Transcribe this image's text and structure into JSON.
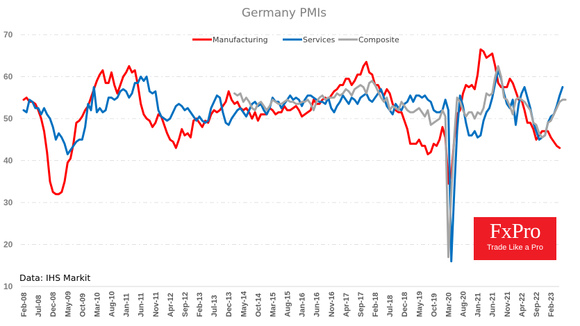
{
  "chart_data": {
    "type": "line",
    "title": "Germany PMIs",
    "xlabel": "",
    "ylabel": "",
    "ylim": [
      10,
      70
    ],
    "yticks": [
      10,
      20,
      30,
      40,
      50,
      60,
      70
    ],
    "grid": true,
    "legend_position": "top-center",
    "source_note": "Data: IHS Markit",
    "start_month": "Feb-08",
    "x_tick_labels": [
      "Feb-08",
      "Jul-08",
      "Dec-08",
      "May-09",
      "Oct-09",
      "Mar-10",
      "Aug-10",
      "Jan-11",
      "Jun-11",
      "Nov-11",
      "Apr-12",
      "Sep-12",
      "Feb-13",
      "Jul-13",
      "Dec-13",
      "May-14",
      "Oct-14",
      "Mar-15",
      "Aug-15",
      "Jan-16",
      "Jun-16",
      "Nov-16",
      "Apr-17",
      "Sep-17",
      "Feb-18",
      "Jul-18",
      "Dec-18",
      "May-19",
      "Oct-19",
      "Mar-20",
      "Aug-20",
      "Jan-21",
      "Jun-21",
      "Nov-21",
      "Apr-22",
      "Sep-22",
      "Feb-23"
    ],
    "series": [
      {
        "name": "Manufacturing",
        "color": "#ff0000",
        "start_index": 0,
        "values": [
          54.5,
          55,
          54,
          54,
          53.5,
          52,
          50,
          47,
          42,
          35,
          32.5,
          32,
          32,
          32.5,
          35,
          39.5,
          40.5,
          44,
          49,
          49.5,
          50.5,
          52,
          53,
          55,
          57,
          59,
          60.5,
          61.5,
          58.5,
          58.5,
          61,
          58,
          56,
          58,
          60,
          61,
          62.5,
          61,
          61.5,
          58,
          53.5,
          51,
          50,
          49.5,
          48,
          49,
          51,
          50.5,
          48.5,
          46.5,
          45,
          44.5,
          43,
          45,
          47.5,
          46,
          46.5,
          45.5,
          49.5,
          50,
          49,
          48,
          49.5,
          49,
          51,
          52,
          51.5,
          52,
          53,
          54,
          56.5,
          54.5,
          53.5,
          54,
          52.5,
          52,
          52.5,
          51.5,
          50,
          51.5,
          49.5,
          51,
          51,
          51,
          52.5,
          52,
          51,
          51.5,
          51.5,
          53,
          52,
          52,
          52.5,
          53,
          52,
          50.5,
          51,
          51.5,
          52,
          54.5,
          53.5,
          53.5,
          54.5,
          55,
          54.5,
          55.5,
          56.5,
          57,
          58,
          58,
          59.5,
          59.5,
          58,
          59,
          60.5,
          60.5,
          62.5,
          63.5,
          61,
          60.5,
          58,
          58,
          56.5,
          55.5,
          57,
          56,
          53.5,
          52,
          51.5,
          51.5,
          49.5,
          47.5,
          44,
          44,
          44,
          45,
          43.5,
          43.5,
          41.5,
          42,
          44,
          43.5,
          45,
          48,
          45.5,
          34.5,
          36.5,
          45,
          51,
          52,
          56,
          58,
          57.5,
          58,
          57,
          60.5,
          66.5,
          66,
          64.5,
          65,
          65.5,
          62.5,
          58.5,
          57.5,
          57.5,
          57.5,
          59.5,
          58.5,
          56.5,
          54.5,
          54.5,
          52,
          49,
          49,
          47.5,
          45,
          46,
          47,
          47,
          47,
          45.5,
          44.5,
          43.5,
          43
        ]
      },
      {
        "name": "Services",
        "color": "#0070c0",
        "start_index": 0,
        "values": [
          52,
          51.5,
          54.5,
          54,
          52.5,
          52.5,
          51,
          52.5,
          51,
          50,
          48,
          45,
          46.5,
          45.5,
          44,
          41.5,
          42.5,
          43.5,
          44.5,
          45,
          45,
          48,
          53.5,
          52,
          57.5,
          51.5,
          52.5,
          51.5,
          52,
          55,
          55,
          54.5,
          55,
          56.5,
          57,
          56.5,
          55,
          56,
          58.5,
          58.5,
          60,
          59,
          60,
          56.5,
          56,
          56.5,
          52,
          50.5,
          50,
          49.5,
          50,
          51.5,
          53,
          53.5,
          53,
          52,
          52.5,
          51.5,
          50.5,
          49.5,
          50.5,
          49.5,
          49,
          49.5,
          52.5,
          54,
          55.5,
          55,
          51.5,
          49,
          48.5,
          50,
          51,
          52,
          52.5,
          51.5,
          50.5,
          52,
          53.5,
          54,
          53,
          53.5,
          52,
          51,
          52.5,
          55,
          54,
          54,
          52.5,
          53.5,
          54.5,
          55.5,
          54.5,
          55,
          54.5,
          53,
          54.5,
          55.5,
          55.5,
          55,
          54.5,
          54,
          54,
          53.5,
          55,
          52.5,
          51.5,
          53,
          54,
          55.5,
          54.5,
          53.5,
          55,
          54.5,
          53.5,
          55,
          55.5,
          56,
          54.5,
          54,
          55,
          56,
          57,
          55,
          53,
          52,
          51,
          53.5,
          52.5,
          52,
          53.5,
          54,
          55.5,
          54,
          55.5,
          55.5,
          55,
          55.5,
          54.5,
          54,
          52,
          51.5,
          51.5,
          52,
          54.5,
          52,
          16,
          32.5,
          47,
          55.5,
          53,
          49,
          46,
          46,
          47,
          45.5,
          46,
          49.5,
          51.5,
          52.5,
          55,
          58.5,
          61.5,
          59.5,
          56,
          53.5,
          52.5,
          54.5,
          48.5,
          53.5,
          56,
          57.5,
          55,
          52.5,
          49,
          47,
          45,
          45.5,
          46,
          49,
          50.5,
          51,
          53,
          55.5,
          57.5
        ]
      },
      {
        "name": "Composite",
        "color": "#a5a5a5",
        "start_index": 72,
        "values": [
          56,
          55.5,
          56,
          54,
          55,
          54,
          52.5,
          52,
          53.5,
          54,
          53,
          52,
          53,
          54.5,
          54,
          53.5,
          53.5,
          54,
          54.5,
          54,
          54,
          53.5,
          53.5,
          54,
          54,
          54.5,
          53.5,
          52,
          54,
          55,
          55.5,
          54.5,
          55,
          55,
          55,
          56,
          55.5,
          56,
          57,
          56.5,
          55.5,
          57,
          57.5,
          58,
          57.5,
          56,
          58.5,
          59,
          58,
          56.5,
          55,
          54,
          55,
          52,
          53,
          52.5,
          52,
          54,
          53,
          52,
          51.5,
          51.5,
          52,
          52.5,
          51.5,
          50.5,
          52,
          48.5,
          49,
          49.5,
          50,
          52,
          50.5,
          17,
          32.5,
          45.5,
          55,
          54,
          52,
          50.5,
          51.5,
          51.5,
          50,
          51.5,
          51,
          52.5,
          56,
          55.5,
          56,
          60,
          62.5,
          60,
          55,
          54.5,
          53,
          51,
          54.5,
          55,
          54.5,
          54,
          53,
          52,
          49,
          48.5,
          46.5,
          45.5,
          46,
          49,
          49.5,
          51,
          52.5,
          54,
          54.5,
          54.5
        ]
      }
    ]
  },
  "logo": {
    "brand": "FxPro",
    "tagline": "Trade Like a Pro"
  }
}
